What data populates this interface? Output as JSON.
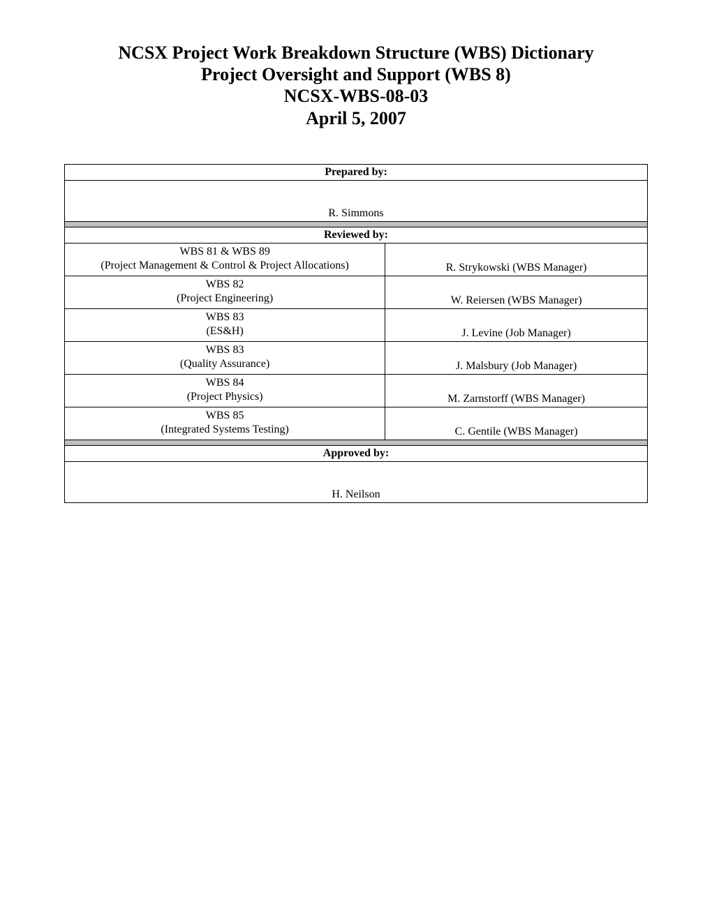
{
  "title": {
    "line1": "NCSX Project Work Breakdown Structure (WBS) Dictionary",
    "line2": "Project Oversight and Support (WBS 8)",
    "line3": "NCSX-WBS-08-03",
    "line4": "April 5, 2007"
  },
  "sections": {
    "prepared": {
      "header": "Prepared by",
      "name": "R. Simmons"
    },
    "reviewed": {
      "header": "Reviewed by:",
      "rows": [
        {
          "left_title": "WBS 81 & WBS 89",
          "left_sub": "(Project Management & Control & Project Allocations)",
          "right": "R. Strykowski (WBS Manager)"
        },
        {
          "left_title": "WBS 82",
          "left_sub": "(Project Engineering)",
          "right": "W. Reiersen (WBS Manager)"
        },
        {
          "left_title": "WBS 83",
          "left_sub": "(ES&H)",
          "right": "J. Levine (Job Manager)"
        },
        {
          "left_title": "WBS 83",
          "left_sub": "(Quality Assurance)",
          "right": "J. Malsbury (Job Manager)"
        },
        {
          "left_title": "WBS 84",
          "left_sub": "(Project Physics)",
          "right": "M. Zarnstorff (WBS Manager)"
        },
        {
          "left_title": "WBS 85",
          "left_sub": "(Integrated Systems Testing)",
          "right": "C. Gentile (WBS Manager)"
        }
      ]
    },
    "approved": {
      "header": "Approved by:",
      "name": "H. Neilson"
    }
  }
}
